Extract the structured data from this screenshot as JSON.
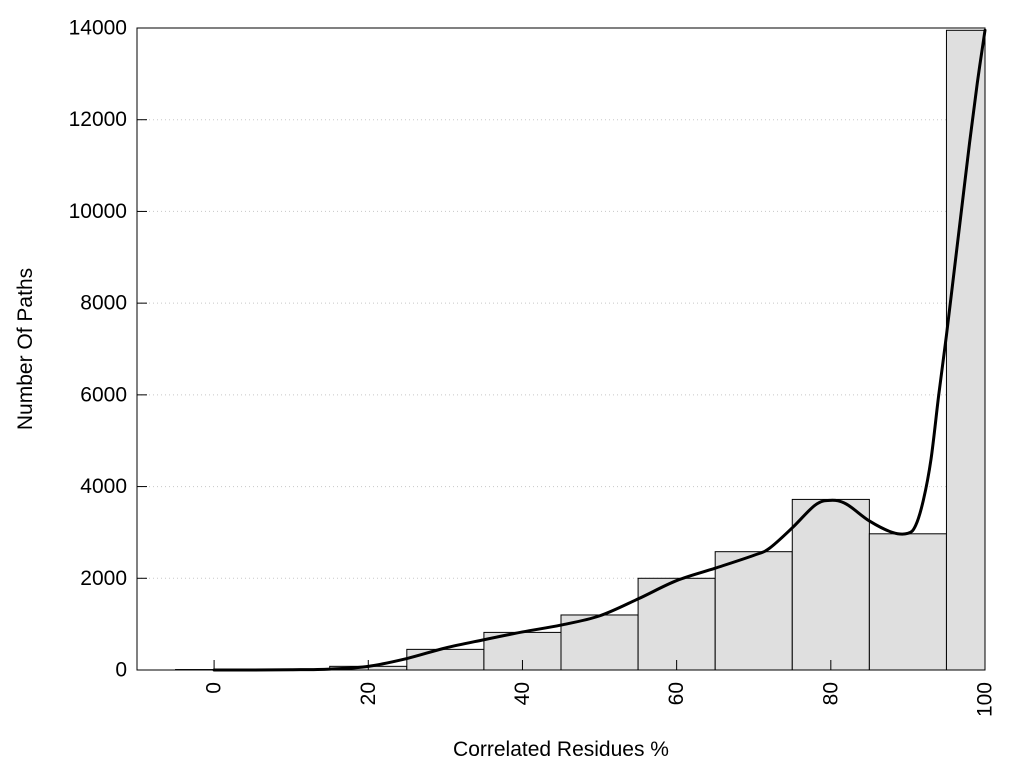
{
  "chart_data": {
    "type": "bar",
    "title": "",
    "xlabel": "Correlated Residues %",
    "ylabel": "Number Of Paths",
    "xlim": [
      -10,
      100
    ],
    "ylim": [
      0,
      14000
    ],
    "x_ticks": [
      0,
      20,
      40,
      60,
      80,
      100
    ],
    "y_ticks": [
      0,
      2000,
      4000,
      6000,
      8000,
      10000,
      12000,
      14000
    ],
    "grid": "horizontal dotted",
    "bar_color": "#dfdfdf",
    "bin_width": 10,
    "bars": [
      {
        "x": 0,
        "value": 10
      },
      {
        "x": 10,
        "value": 15
      },
      {
        "x": 20,
        "value": 80
      },
      {
        "x": 30,
        "value": 450
      },
      {
        "x": 40,
        "value": 820
      },
      {
        "x": 50,
        "value": 1200
      },
      {
        "x": 60,
        "value": 2000
      },
      {
        "x": 70,
        "value": 2580
      },
      {
        "x": 80,
        "value": 3720
      },
      {
        "x": 90,
        "value": 2970
      },
      {
        "x": 100,
        "value": 13950
      }
    ],
    "curve": {
      "x": [
        0,
        5,
        10,
        15,
        20,
        25,
        30,
        35,
        40,
        45,
        50,
        55,
        60,
        65,
        70,
        72,
        75,
        78,
        80,
        82,
        85,
        88,
        90,
        91,
        92,
        93,
        94,
        95,
        96,
        97,
        98,
        99,
        100
      ],
      "y": [
        0,
        0,
        5,
        20,
        80,
        250,
        480,
        660,
        830,
        980,
        1180,
        1550,
        1950,
        2220,
        2500,
        2650,
        3100,
        3600,
        3700,
        3620,
        3250,
        3000,
        2980,
        3150,
        3700,
        4600,
        6000,
        7300,
        8700,
        10100,
        11500,
        12800,
        13950
      ]
    }
  }
}
